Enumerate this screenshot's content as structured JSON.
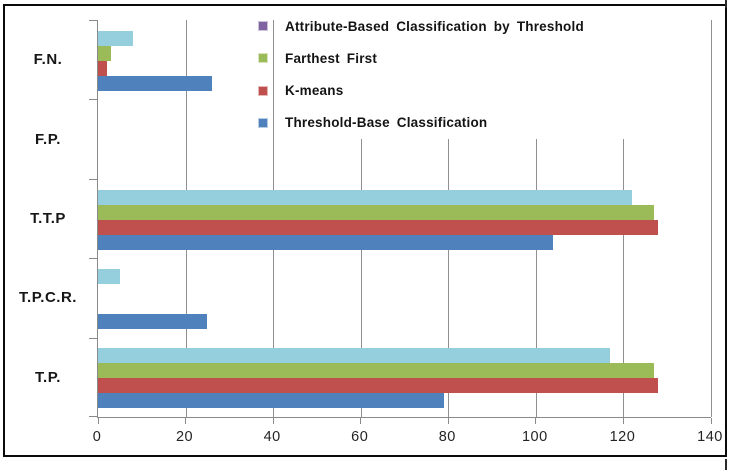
{
  "chart_data": {
    "type": "bar",
    "orientation": "horizontal",
    "title": "",
    "xlabel": "",
    "ylabel": "",
    "categories": [
      "F.N.",
      "F.P.",
      "T.T.P",
      "T.P.C.R.",
      "T.P."
    ],
    "categories_order": "top-to-bottom",
    "series": [
      {
        "name": "Attribute-Based Classification by Threshold",
        "legend_color": "#8064A2",
        "bar_color": "#95CEDD",
        "values": [
          8,
          0,
          122,
          5,
          117
        ]
      },
      {
        "name": "Farthest First",
        "legend_color": "#9BBB59",
        "bar_color": "#9BBB59",
        "values": [
          3,
          0,
          127,
          0,
          127
        ]
      },
      {
        "name": "K-means",
        "legend_color": "#C0504D",
        "bar_color": "#C0504D",
        "values": [
          2,
          0,
          128,
          0,
          128
        ]
      },
      {
        "name": "Threshold-Base Classification",
        "legend_color": "#4F81BD",
        "bar_color": "#4F81BD",
        "values": [
          26,
          0,
          104,
          25,
          79
        ]
      }
    ],
    "x_ticks": [
      0,
      20,
      40,
      60,
      80,
      100,
      120,
      140
    ],
    "xlim": [
      0,
      140
    ],
    "grid": true,
    "legend_position": "top-inside",
    "bar_order_within_group": "series listed top-to-bottom"
  },
  "colors": {
    "background": "#FFFFFF",
    "gridline": "#8F8F8F",
    "axis": "#8A8A8A",
    "text": "#1C1C1C",
    "outer_border": "#0A0A0A"
  }
}
